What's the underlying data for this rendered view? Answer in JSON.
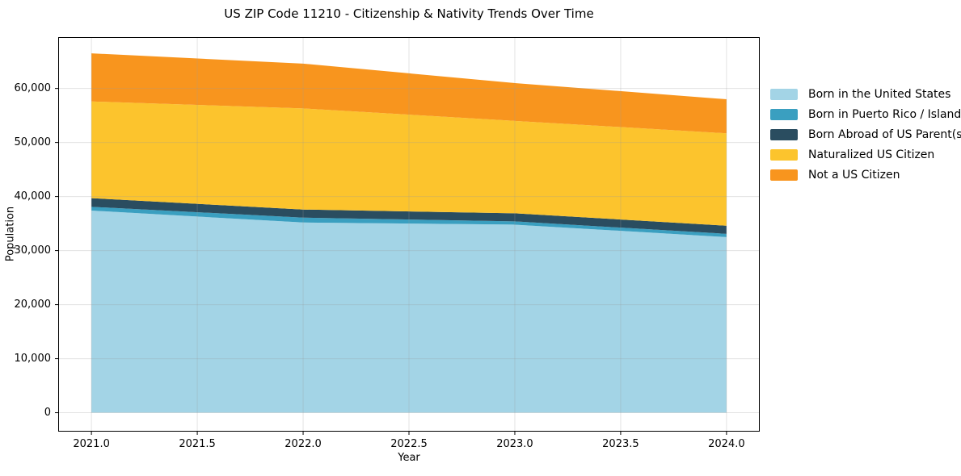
{
  "chart_data": {
    "type": "area",
    "stacked": true,
    "title": "US ZIP Code 11210 - Citizenship & Nativity Trends Over Time",
    "xlabel": "Year",
    "ylabel": "Population",
    "x": [
      2021,
      2022,
      2023,
      2024
    ],
    "series": [
      {
        "name": "Born in the United States",
        "color": "#a3d4e6",
        "values": [
          37400,
          35200,
          34800,
          32500
        ]
      },
      {
        "name": "Born in Puerto Rico / Islands",
        "color": "#3a9fc0",
        "values": [
          700,
          900,
          600,
          600
        ]
      },
      {
        "name": "Born Abroad of US Parent(s)",
        "color": "#2a4d60",
        "values": [
          1600,
          1500,
          1500,
          1500
        ]
      },
      {
        "name": "Naturalized US Citizen",
        "color": "#fcc42d",
        "values": [
          17900,
          18700,
          17100,
          17100
        ]
      },
      {
        "name": "Not a US Citizen",
        "color": "#f8951e",
        "values": [
          8900,
          8300,
          7000,
          6300
        ]
      }
    ],
    "totals": [
      66500,
      64600,
      61000,
      58000
    ],
    "xlim": [
      2020.843,
      2024.157
    ],
    "ylim": [
      -3500,
      69500
    ],
    "xticks": {
      "values": [
        2021.0,
        2021.5,
        2022.0,
        2022.5,
        2023.0,
        2023.5,
        2024.0
      ],
      "labels": [
        "2021.0",
        "2021.5",
        "2022.0",
        "2022.5",
        "2023.0",
        "2023.5",
        "2024.0"
      ]
    },
    "yticks": {
      "values": [
        0,
        10000,
        20000,
        30000,
        40000,
        50000,
        60000
      ],
      "labels": [
        "0",
        "10,000",
        "20,000",
        "30,000",
        "40,000",
        "50,000",
        "60,000"
      ]
    },
    "grid": true,
    "legend_position": "right-of-plot"
  }
}
